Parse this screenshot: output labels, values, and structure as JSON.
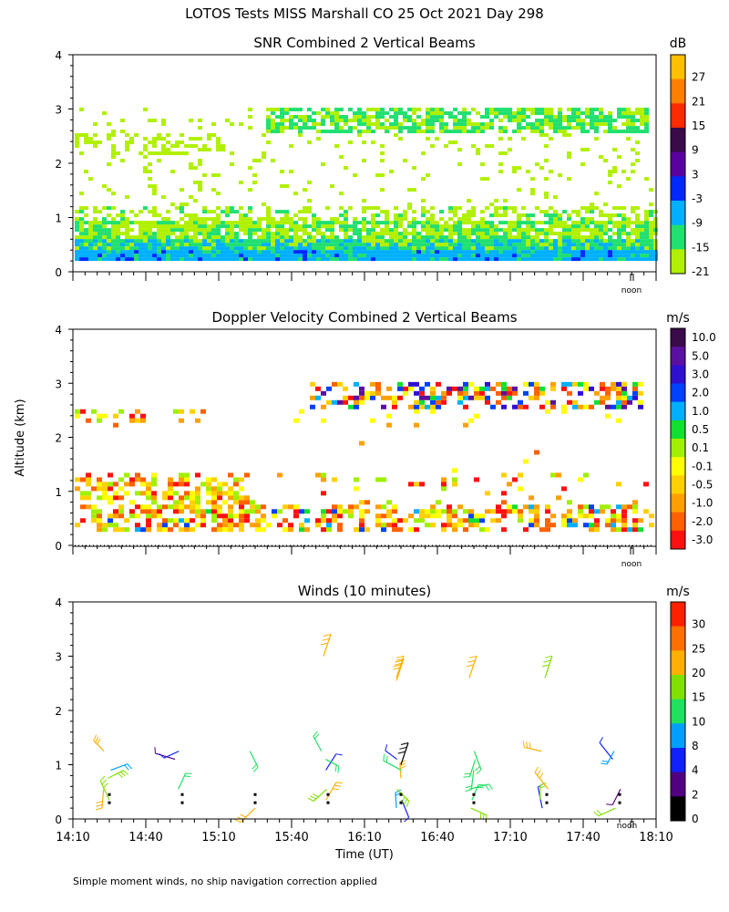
{
  "title": "LOTOS Tests MISS Marshall CO  25 Oct 2021 Day 298",
  "ylabel": "Altitude (km)",
  "xlabel": "Time (UT)",
  "footnote": "Simple moment winds, no ship navigation correction applied",
  "noon_label": "noon",
  "chart_data": [
    {
      "type": "heatmap",
      "title": "SNR Combined 2 Vertical Beams",
      "units": "dB",
      "ylim": [
        0,
        4
      ],
      "yticks": [
        "0",
        "1",
        "2",
        "3",
        "4"
      ],
      "colorbar": {
        "labels": [
          "27",
          "21",
          "15",
          "9",
          "3",
          "-3",
          "-9",
          "-15",
          "-21"
        ],
        "colors": [
          "#ffc000",
          "#ff7f00",
          "#ff2a00",
          "#3a0a4a",
          "#5a00a0",
          "#0028ff",
          "#00b0ff",
          "#20e070",
          "#b0f000"
        ]
      }
    },
    {
      "type": "heatmap",
      "title": "Doppler Velocity Combined 2 Vertical Beams",
      "units": "m/s",
      "ylim": [
        0,
        4
      ],
      "yticks": [
        "0",
        "1",
        "2",
        "3",
        "4"
      ],
      "colorbar": {
        "labels": [
          "10.0",
          "5.0",
          "3.0",
          "2.0",
          "1.0",
          "0.5",
          "0.1",
          "-0.1",
          "-0.5",
          "-1.0",
          "-2.0",
          "-3.0"
        ],
        "colors": [
          "#3a0a4a",
          "#5a10a0",
          "#3010d0",
          "#0040ff",
          "#00b0ff",
          "#10e030",
          "#a0f000",
          "#ffff00",
          "#ffd000",
          "#ffa000",
          "#ff6000",
          "#ff1010"
        ]
      }
    },
    {
      "type": "scatter",
      "title": "Winds (10 minutes)",
      "units": "m/s",
      "ylim": [
        0,
        4
      ],
      "yticks": [
        "0",
        "1",
        "2",
        "3",
        "4"
      ],
      "xticks": [
        "14:10",
        "14:40",
        "15:10",
        "15:40",
        "16:10",
        "16:40",
        "17:10",
        "17:40",
        "18:10"
      ],
      "colorbar": {
        "labels": [
          "30",
          "25",
          "20",
          "15",
          "10",
          "8",
          "4",
          "2",
          "0"
        ],
        "colors": [
          "#ff2000",
          "#ff7000",
          "#ffb000",
          "#80e000",
          "#20e060",
          "#00a0ff",
          "#1020ff",
          "#500080",
          "#000000"
        ]
      }
    }
  ]
}
